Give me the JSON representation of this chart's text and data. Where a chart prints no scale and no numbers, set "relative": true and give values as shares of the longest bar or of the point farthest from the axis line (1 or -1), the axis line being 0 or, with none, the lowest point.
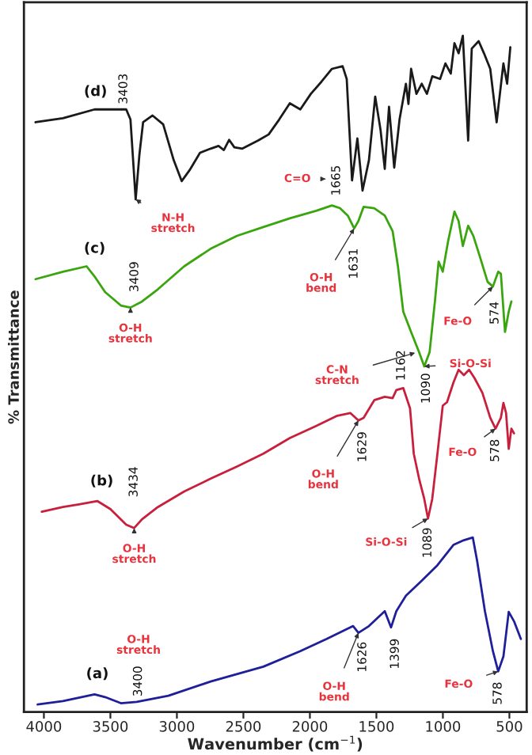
{
  "chart_data": {
    "type": "line",
    "relative": true,
    "xlabel": "Wavenumber (cm$^{−1}$)",
    "ylabel": "% Transmittance",
    "xlim": [
      4150,
      370
    ],
    "xticks": [
      4000,
      3500,
      3000,
      2500,
      2000,
      1500,
      1000,
      500
    ],
    "grid": false,
    "legend": false,
    "marker": "none",
    "line_style": "solid",
    "series": [
      {
        "name": "(d)",
        "color": "#1a1a1a",
        "x": [
          4063,
          3857,
          3619,
          3381,
          3349,
          3310,
          3282,
          3254,
          3183,
          3103,
          3024,
          2964,
          2905,
          2826,
          2746,
          2687,
          2647,
          2607,
          2568,
          2508,
          2389,
          2310,
          2231,
          2151,
          2072,
          1993,
          1913,
          1834,
          1754,
          1723,
          1683,
          1643,
          1604,
          1556,
          1509,
          1469,
          1437,
          1405,
          1366,
          1326,
          1278,
          1259,
          1239,
          1199,
          1159,
          1120,
          1080,
          1021,
          981,
          941,
          913,
          882,
          850,
          810,
          783,
          731,
          691,
          644,
          596,
          545,
          517,
          493
        ],
        "values": [
          0.872,
          0.878,
          0.891,
          0.891,
          0.876,
          0.758,
          0.824,
          0.872,
          0.882,
          0.869,
          0.816,
          0.785,
          0.801,
          0.827,
          0.833,
          0.837,
          0.831,
          0.846,
          0.835,
          0.833,
          0.845,
          0.854,
          0.876,
          0.9,
          0.891,
          0.914,
          0.932,
          0.951,
          0.955,
          0.936,
          0.786,
          0.848,
          0.771,
          0.816,
          0.91,
          0.861,
          0.803,
          0.895,
          0.805,
          0.876,
          0.929,
          0.899,
          0.951,
          0.914,
          0.929,
          0.914,
          0.94,
          0.936,
          0.959,
          0.944,
          0.989,
          0.974,
          1.0,
          0.845,
          0.981,
          0.992,
          0.974,
          0.951,
          0.872,
          0.959,
          0.929,
          0.983
        ]
      },
      {
        "name": "(c)",
        "color": "#3aa50e",
        "x": [
          4063,
          3857,
          3679,
          3619,
          3540,
          3421,
          3349,
          3262,
          3143,
          2945,
          2746,
          2548,
          2350,
          2151,
          1953,
          1834,
          1774,
          1715,
          1667,
          1635,
          1596,
          1516,
          1437,
          1378,
          1338,
          1298,
          1239,
          1179,
          1140,
          1100,
          1060,
          1032,
          1001,
          961,
          913,
          882,
          850,
          810,
          771,
          723,
          664,
          624,
          584,
          564,
          533,
          505,
          485
        ],
        "values": [
          0.64,
          0.651,
          0.659,
          0.644,
          0.621,
          0.601,
          0.598,
          0.607,
          0.625,
          0.659,
          0.685,
          0.704,
          0.717,
          0.73,
          0.741,
          0.749,
          0.745,
          0.734,
          0.715,
          0.726,
          0.747,
          0.745,
          0.734,
          0.711,
          0.659,
          0.592,
          0.562,
          0.532,
          0.511,
          0.532,
          0.607,
          0.666,
          0.651,
          0.696,
          0.74,
          0.726,
          0.689,
          0.719,
          0.704,
          0.674,
          0.636,
          0.629,
          0.651,
          0.648,
          0.562,
          0.592,
          0.607
        ]
      },
      {
        "name": "(b)",
        "color": "#c8203c",
        "x": [
          4016,
          3857,
          3738,
          3599,
          3500,
          3381,
          3321,
          3262,
          3143,
          2945,
          2746,
          2548,
          2350,
          2151,
          1953,
          1794,
          1695,
          1635,
          1596,
          1516,
          1437,
          1378,
          1350,
          1298,
          1247,
          1219,
          1179,
          1140,
          1112,
          1080,
          1041,
          1001,
          969,
          921,
          882,
          842,
          803,
          763,
          703,
          644,
          604,
          564,
          545,
          525,
          505,
          485,
          465
        ],
        "values": [
          0.296,
          0.303,
          0.307,
          0.312,
          0.3,
          0.277,
          0.272,
          0.285,
          0.303,
          0.326,
          0.345,
          0.363,
          0.382,
          0.405,
          0.423,
          0.438,
          0.442,
          0.431,
          0.435,
          0.461,
          0.466,
          0.464,
          0.476,
          0.479,
          0.449,
          0.382,
          0.345,
          0.315,
          0.286,
          0.315,
          0.382,
          0.453,
          0.458,
          0.487,
          0.506,
          0.498,
          0.506,
          0.494,
          0.472,
          0.435,
          0.419,
          0.435,
          0.457,
          0.442,
          0.389,
          0.419,
          0.412
        ]
      },
      {
        "name": "(a)",
        "color": "#1f1f9a",
        "x": [
          4047,
          3857,
          3619,
          3540,
          3421,
          3302,
          3064,
          2746,
          2350,
          2072,
          1873,
          1675,
          1635,
          1556,
          1437,
          1390,
          1350,
          1278,
          1159,
          1041,
          921,
          842,
          775,
          743,
          684,
          624,
          584,
          545,
          505,
          465,
          414
        ],
        "values": [
          0.011,
          0.016,
          0.026,
          0.022,
          0.013,
          0.015,
          0.024,
          0.045,
          0.067,
          0.09,
          0.108,
          0.127,
          0.117,
          0.127,
          0.149,
          0.125,
          0.149,
          0.172,
          0.194,
          0.217,
          0.247,
          0.254,
          0.258,
          0.224,
          0.149,
          0.09,
          0.06,
          0.082,
          0.148,
          0.134,
          0.108
        ]
      }
    ],
    "annotations": [
      {
        "text": "3403",
        "x": 3349,
        "y": 0.876
      },
      {
        "text": "1665",
        "x": 1683,
        "y": 0.786
      },
      {
        "text": "1631",
        "x": 1667,
        "y": 0.715
      },
      {
        "text": "3409",
        "x": 3349,
        "y": 0.598
      },
      {
        "text": "1162",
        "x": 1179,
        "y": 0.532
      },
      {
        "text": "1090",
        "x": 1140,
        "y": 0.511
      },
      {
        "text": "574",
        "x": 624,
        "y": 0.629
      },
      {
        "text": "3434",
        "x": 3321,
        "y": 0.272
      },
      {
        "text": "1629",
        "x": 1635,
        "y": 0.431
      },
      {
        "text": "1089",
        "x": 1112,
        "y": 0.286
      },
      {
        "text": "578",
        "x": 604,
        "y": 0.419
      },
      {
        "text": "3400",
        "x": 3421,
        "y": 0.013
      },
      {
        "text": "1626",
        "x": 1635,
        "y": 0.117
      },
      {
        "text": "1399",
        "x": 1390,
        "y": 0.125
      },
      {
        "text": "578",
        "x": 584,
        "y": 0.06
      },
      {
        "text": "N-H\nstretch",
        "x": 3310,
        "y": 0.758
      },
      "C=O",
      {
        "text": "O-H\nbend",
        "x": 1667,
        "y": 0.715
      },
      {
        "text": "O-H\nstretch",
        "x": 3349,
        "y": 0.598
      },
      "C-N\nstretch",
      {
        "text": "Si-O-Si",
        "x": 1140,
        "y": 0.511
      },
      {
        "text": "Fe-O",
        "x": 624,
        "y": 0.629
      },
      {
        "text": "O-H\nbend",
        "x": 1635,
        "y": 0.431
      },
      {
        "text": "Si-O-Si",
        "x": 1112,
        "y": 0.286
      },
      {
        "text": "Fe-O",
        "x": 604,
        "y": 0.419
      },
      {
        "text": "O-H\nstretch",
        "x": 3321,
        "y": 0.272
      },
      "O-H\nstretch",
      {
        "text": "O-H\nbend",
        "x": 1635,
        "y": 0.117
      },
      {
        "text": "Fe-O",
        "x": 584,
        "y": 0.06
      }
    ]
  }
}
